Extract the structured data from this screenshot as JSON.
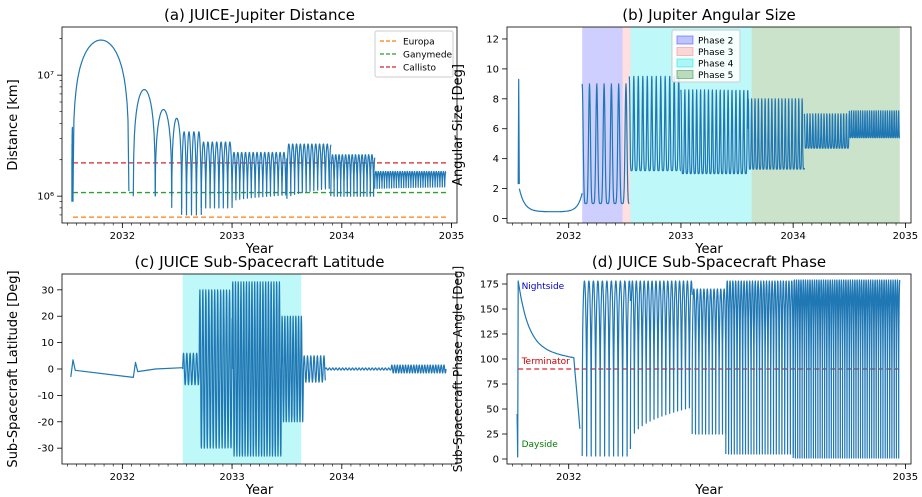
{
  "chart_data": [
    {
      "panel": "a",
      "type": "line",
      "title": "(a) JUICE-Jupiter Distance",
      "xlabel": "Year",
      "ylabel": "Distance [km]",
      "yscale": "log",
      "xlim": [
        2031.45,
        2035.05
      ],
      "ylim": [
        600000,
        25000000
      ],
      "x_ticks": [
        2032,
        2033,
        2034,
        2035
      ],
      "y_ticks": [
        {
          "value": 1000000,
          "label": "10⁶"
        },
        {
          "value": 10000000,
          "label": "10⁷"
        }
      ],
      "grid": false,
      "legend_position": "top-right",
      "reference_lines": [
        {
          "name": "Europa",
          "y": 670900,
          "color": "#ff7f0e",
          "style": "dashed"
        },
        {
          "name": "Ganymede",
          "y": 1070400,
          "color": "#2ca02c",
          "style": "dashed"
        },
        {
          "name": "Callisto",
          "y": 1882700,
          "color": "#d62728",
          "style": "dashed"
        }
      ],
      "series": [
        {
          "color": "#1f77b4",
          "arcs": [
            {
              "start": 2031.54,
              "end": 2031.55,
              "peak": 3700000,
              "trough": 900000
            },
            {
              "start": 2031.55,
              "end": 2032.06,
              "peak": 19500000,
              "trough": 1100000
            },
            {
              "start": 2032.1,
              "end": 2032.3,
              "peak": 7600000,
              "trough": 1000000
            },
            {
              "start": 2032.3,
              "end": 2032.45,
              "peak": 5200000,
              "trough": 1000000
            },
            {
              "start": 2032.45,
              "end": 2032.54,
              "peak": 4400000,
              "trough": 800000
            }
          ],
          "orbits": [
            {
              "start": 2032.54,
              "end": 2032.72,
              "period": 0.045,
              "peak": 3400000,
              "trough": 700000
            },
            {
              "start": 2032.72,
              "end": 2033.0,
              "period": 0.04,
              "peak": 2800000,
              "trough": 800000
            },
            {
              "start": 2033.0,
              "end": 2033.5,
              "period": 0.035,
              "peak": 2300000,
              "trough": 900000
            },
            {
              "start": 2033.5,
              "end": 2033.9,
              "period": 0.035,
              "peak": 2700000,
              "trough": 950000
            },
            {
              "start": 2033.9,
              "end": 2034.3,
              "period": 0.03,
              "peak": 2200000,
              "trough": 1000000
            },
            {
              "start": 2034.3,
              "end": 2034.95,
              "period": 0.022,
              "peak": 1600000,
              "trough": 1150000
            }
          ]
        }
      ]
    },
    {
      "panel": "b",
      "type": "line",
      "title": "(b) Jupiter Angular Size",
      "xlabel": "Year",
      "ylabel": "Angular Size [Deg]",
      "xlim": [
        2031.45,
        2035.05
      ],
      "ylim": [
        -0.3,
        12.8
      ],
      "x_ticks": [
        2032,
        2033,
        2034,
        2035
      ],
      "y_ticks": [
        0,
        2,
        4,
        6,
        8,
        10,
        12
      ],
      "grid": false,
      "legend_position": "top-center",
      "shaded_phases": [
        {
          "name": "Phase 2",
          "start": 2032.12,
          "end": 2032.48,
          "color": "#3f3fff"
        },
        {
          "name": "Phase 3",
          "start": 2032.48,
          "end": 2032.55,
          "color": "#ff7f7f"
        },
        {
          "name": "Phase 4",
          "start": 2032.55,
          "end": 2033.63,
          "color": "#00e5e5"
        },
        {
          "name": "Phase 5",
          "start": 2033.63,
          "end": 2034.95,
          "color": "#2e8b2e"
        }
      ],
      "series": [
        {
          "color": "#1f77b4",
          "segments": [
            {
              "start": 2031.55,
              "end": 2031.56,
              "peak": 9.3,
              "trough": 2.3
            },
            {
              "start": 2031.56,
              "end": 2032.12,
              "peak": 2.0,
              "trough": 0.45
            },
            {
              "start": 2032.12,
              "end": 2032.54,
              "peak": 9.0,
              "trough": 1.0
            }
          ],
          "orbits": [
            {
              "start": 2032.54,
              "end": 2033.0,
              "period": 0.04,
              "peak": 9.5,
              "trough": 3.2
            },
            {
              "start": 2033.0,
              "end": 2033.6,
              "period": 0.035,
              "peak": 8.6,
              "trough": 3.0
            },
            {
              "start": 2033.6,
              "end": 2034.1,
              "period": 0.03,
              "peak": 8.0,
              "trough": 3.3
            },
            {
              "start": 2034.1,
              "end": 2034.5,
              "period": 0.025,
              "peak": 7.0,
              "trough": 4.7
            },
            {
              "start": 2034.5,
              "end": 2034.95,
              "period": 0.02,
              "peak": 7.2,
              "trough": 5.4
            }
          ]
        }
      ]
    },
    {
      "panel": "c",
      "type": "line",
      "title": "(c) JUICE Sub-Spacecraft Latitude",
      "xlabel": "Year",
      "ylabel": "Sub-Spacecraft Latitude [Deg]",
      "xlim": [
        2031.45,
        2035.05
      ],
      "ylim": [
        -36,
        36
      ],
      "x_ticks": [
        2032,
        2033,
        2034
      ],
      "y_ticks": [
        -30,
        -20,
        -10,
        0,
        10,
        20,
        30
      ],
      "grid": false,
      "shaded_regions": [
        {
          "start": 2032.55,
          "end": 2033.63,
          "color": "#00e5e5"
        }
      ],
      "series": [
        {
          "color": "#1f77b4",
          "baseline": [
            {
              "x": 2031.53,
              "y": -3
            },
            {
              "x": 2031.55,
              "y": 3.5
            },
            {
              "x": 2031.57,
              "y": -0.5
            },
            {
              "x": 2032.1,
              "y": -3.2
            },
            {
              "x": 2032.12,
              "y": 2.5
            },
            {
              "x": 2032.14,
              "y": -1
            },
            {
              "x": 2032.3,
              "y": 0
            },
            {
              "x": 2032.55,
              "y": 0.5
            }
          ],
          "orbits": [
            {
              "start": 2032.55,
              "end": 2032.7,
              "period": 0.03,
              "amplitude": 6
            },
            {
              "start": 2032.7,
              "end": 2033.0,
              "period": 0.027,
              "amplitude": 30
            },
            {
              "start": 2033.0,
              "end": 2033.45,
              "period": 0.025,
              "amplitude": 33
            },
            {
              "start": 2033.45,
              "end": 2033.65,
              "period": 0.025,
              "amplitude": 20
            },
            {
              "start": 2033.65,
              "end": 2033.85,
              "period": 0.03,
              "amplitude": 5
            },
            {
              "start": 2033.85,
              "end": 2034.45,
              "period": 0.03,
              "amplitude": 0.4
            },
            {
              "start": 2034.45,
              "end": 2034.95,
              "period": 0.025,
              "amplitude": 1.5
            }
          ]
        }
      ]
    },
    {
      "panel": "d",
      "type": "line",
      "title": "(d) JUICE Sub-Spacecraft Phase",
      "xlabel": "Year",
      "ylabel": "Sub-Spacecraft Phase Angle [Deg]",
      "xlim": [
        2031.45,
        2035.05
      ],
      "ylim": [
        -5,
        185
      ],
      "x_ticks": [
        2032,
        2035
      ],
      "y_ticks": [
        0,
        25,
        50,
        75,
        100,
        125,
        150,
        175
      ],
      "grid": false,
      "reference_lines": [
        {
          "name": "Terminator",
          "y": 90,
          "color": "#d62728",
          "style": "dashed"
        }
      ],
      "annotations": [
        {
          "text": "Nightside",
          "x": 2031.58,
          "y": 170,
          "color": "#0000cc"
        },
        {
          "text": "Terminator",
          "x": 2031.58,
          "y": 95,
          "color": "#cc0000"
        },
        {
          "text": "Dayside",
          "x": 2031.58,
          "y": 12,
          "color": "#008000"
        }
      ],
      "series": [
        {
          "color": "#1f77b4",
          "orbits": [
            {
              "start": 2032.12,
              "end": 2032.55,
              "period": 0.04,
              "low": 3,
              "high": 178
            },
            {
              "start": 2032.55,
              "end": 2033.1,
              "period": 0.035,
              "low": 10,
              "high": 178
            },
            {
              "start": 2033.1,
              "end": 2033.4,
              "period": 0.03,
              "low": 25,
              "high": 170
            },
            {
              "start": 2033.4,
              "end": 2034.0,
              "period": 0.025,
              "low": 5,
              "high": 178
            },
            {
              "start": 2034.0,
              "end": 2034.95,
              "period": 0.02,
              "low": 1,
              "high": 179
            }
          ]
        }
      ]
    }
  ]
}
